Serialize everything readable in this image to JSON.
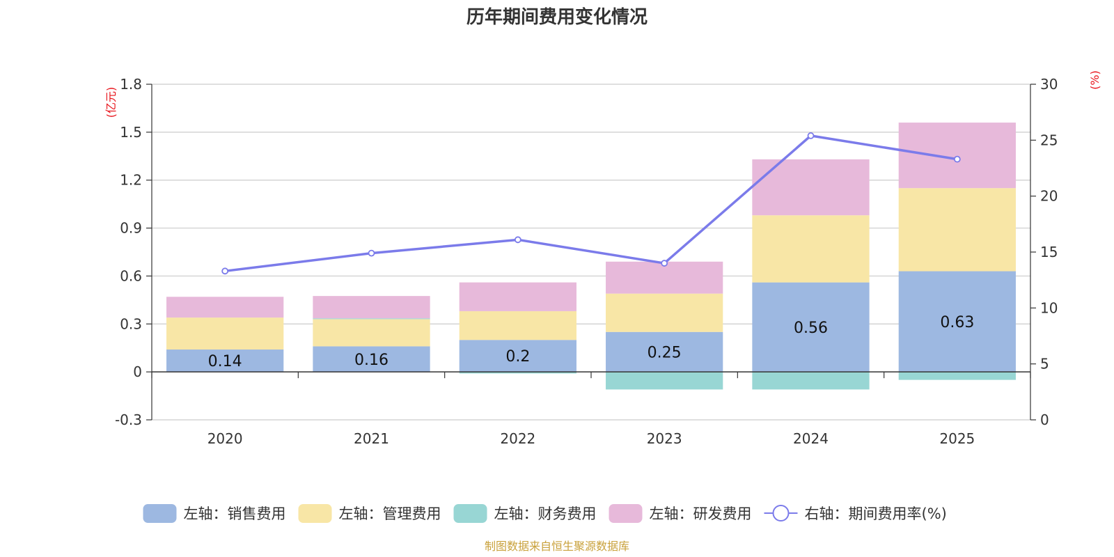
{
  "chart_data": {
    "type": "bar",
    "stacked": true,
    "title": "历年期间费用变化情况",
    "categories": [
      "2020",
      "2021",
      "2022",
      "2023",
      "2024",
      "2025"
    ],
    "series": [
      {
        "name": "左轴：销售费用",
        "axis": "left",
        "color": "#9db8e1",
        "values": [
          0.14,
          0.16,
          0.2,
          0.25,
          0.56,
          0.63
        ],
        "labels": [
          "0.14",
          "0.16",
          "0.2",
          "0.25",
          "0.56",
          "0.63"
        ]
      },
      {
        "name": "左轴：管理费用",
        "axis": "left",
        "color": "#f8e6a6",
        "values": [
          0.2,
          0.17,
          0.18,
          0.24,
          0.42,
          0.52
        ]
      },
      {
        "name": "左轴：财务费用",
        "axis": "left",
        "color": "#98d6d4",
        "values": [
          0.0,
          0.005,
          -0.01,
          -0.11,
          -0.11,
          -0.05
        ]
      },
      {
        "name": "左轴：研发费用",
        "axis": "left",
        "color": "#e7b9da",
        "values": [
          0.13,
          0.14,
          0.18,
          0.2,
          0.35,
          0.41
        ]
      },
      {
        "name": "右轴：期间费用率(%)",
        "axis": "right",
        "type": "line",
        "color": "#7b7bea",
        "values": [
          13.3,
          14.9,
          16.1,
          14.0,
          25.4,
          23.3
        ]
      }
    ],
    "left_axis": {
      "unit": "(亿元)",
      "min": -0.3,
      "max": 1.8,
      "ticks": [
        "-0.3",
        "0",
        "0.3",
        "0.6",
        "0.9",
        "1.2",
        "1.5",
        "1.8"
      ]
    },
    "right_axis": {
      "unit": "(%)",
      "min": 0,
      "max": 30,
      "ticks": [
        "0",
        "5",
        "10",
        "15",
        "20",
        "25",
        "30"
      ]
    },
    "grid": true,
    "legend_position": "bottom",
    "source": "制图数据来自恒生聚源数据库"
  }
}
